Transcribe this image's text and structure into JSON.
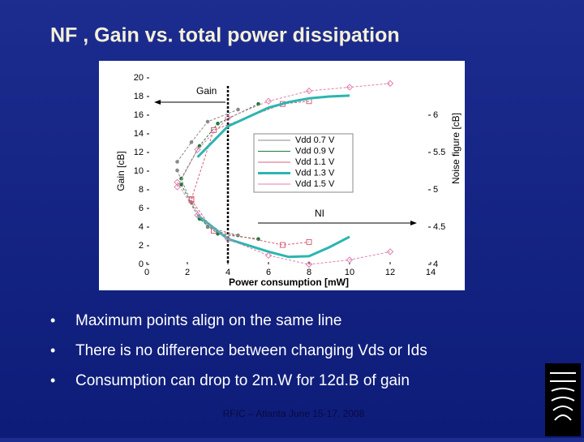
{
  "slide": {
    "title": "NF , Gain vs. total power dissipation",
    "bullets": [
      "Maximum points align on the same line",
      "There is no difference between changing Vds or Ids",
      "Consumption can drop to 2m.W for 12d.B of gain"
    ],
    "footer": "RFIC – Atlanta June 15-17, 2008"
  },
  "chart_data": {
    "type": "line",
    "xlabel": "Power consumption [mW]",
    "ylabel": "Gain [cB]",
    "y2label": "Noise figure [cB]",
    "xlim": [
      0,
      14
    ],
    "xticks": [
      0,
      2,
      4,
      6,
      8,
      10,
      12,
      14
    ],
    "ylim": [
      0,
      20
    ],
    "yticks": [
      0,
      2,
      4,
      6,
      8,
      10,
      12,
      14,
      16,
      18,
      20
    ],
    "y2lim": [
      4,
      6.5
    ],
    "y2ticks": [
      4,
      4.5,
      5,
      5.5,
      6
    ],
    "ref_line_x": 4,
    "annotations": [
      "Gain",
      "NI"
    ],
    "series": [
      {
        "name": "Vdd 0.7 V",
        "color": "#888888",
        "marker": "dot",
        "width": 1,
        "x": [
          1.5,
          2.2,
          3,
          4.5
        ],
        "gain": [
          11.0,
          13.1,
          15.3,
          16.6
        ],
        "nf": [
          5.26,
          4.83,
          4.5,
          4.39
        ]
      },
      {
        "name": "Vdd 0.9 V",
        "color": "#1e7a3a",
        "marker": "dot",
        "width": 1,
        "x": [
          1.7,
          2.6,
          3.5,
          5.5
        ],
        "gain": [
          9.2,
          12.7,
          15.1,
          17.2
        ],
        "nf": [
          5.07,
          4.61,
          4.41,
          4.34
        ]
      },
      {
        "name": "Vdd 1.1 V",
        "color": "#d9607a",
        "marker": "square",
        "width": 1,
        "x": [
          2.2,
          3.3,
          6.7,
          8
        ],
        "gain": [
          7.0,
          14.4,
          17.2,
          17.5
        ],
        "nf": [
          4.86,
          4.45,
          4.26,
          4.3
        ]
      },
      {
        "name": "Vdd 1.3 V",
        "color": "#2bb5b0",
        "marker": "none",
        "width": 3,
        "x": [
          2.5,
          4,
          6,
          7,
          8,
          9,
          10
        ],
        "gain": [
          11.5,
          14.8,
          16.8,
          17.4,
          17.8,
          18,
          18.1
        ],
        "nf": [
          4.66,
          4.34,
          4.17,
          4.1,
          4.11,
          4.23,
          4.37
        ]
      },
      {
        "name": "Vdd 1.5 V",
        "color": "#e080b0",
        "marker": "diamond",
        "width": 1,
        "x": [
          1.5,
          2.5,
          4,
          6,
          8,
          10,
          12
        ],
        "gain": [
          8.3,
          12.3,
          15.7,
          17.5,
          18.6,
          19.0,
          19.4
        ],
        "nf": [
          5.1,
          4.66,
          4.34,
          4.12,
          4.0,
          4.06,
          4.17
        ]
      }
    ]
  }
}
